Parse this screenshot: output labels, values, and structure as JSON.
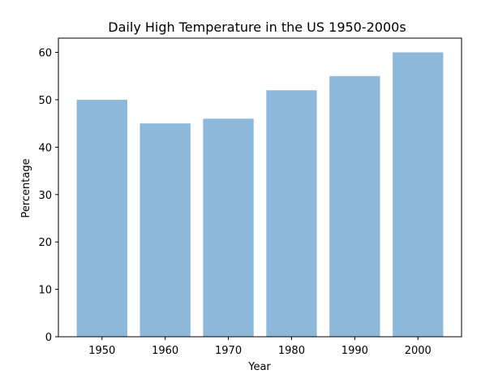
{
  "chart_data": {
    "type": "bar",
    "title": "Daily High Temperature in the US 1950-2000s",
    "xlabel": "Year",
    "ylabel": "Percentage",
    "categories": [
      "1950",
      "1960",
      "1970",
      "1980",
      "1990",
      "2000"
    ],
    "values": [
      50,
      45,
      46,
      52,
      55,
      60
    ],
    "ylim": [
      0,
      63
    ],
    "yticks": [
      0,
      10,
      20,
      30,
      40,
      50,
      60
    ],
    "grid": false,
    "bar_color": "#8db8da"
  }
}
